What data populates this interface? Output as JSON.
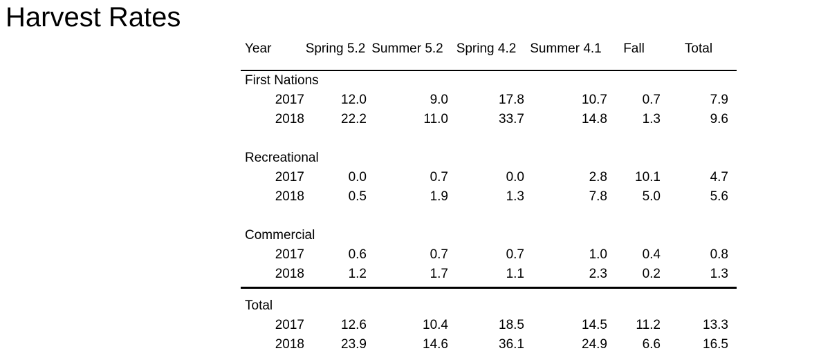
{
  "page": {
    "title": "Harvest Rates",
    "background_color": "#ffffff",
    "text_color": "#000000"
  },
  "chart_data": {
    "type": "table",
    "title": "Harvest Rates",
    "columns": [
      "Year",
      "Spring 5.2",
      "Summer 5.2",
      "Spring 4.2",
      "Summer 4.1",
      "Fall",
      "Total"
    ],
    "layout_hints": {
      "header_rule": "thin",
      "rule_before_total_section": "thick",
      "value_alignment": "right",
      "section_label_alignment": "left"
    },
    "sections": [
      {
        "label": "First Nations",
        "rows": [
          {
            "year": "2017",
            "values": [
              "12.0",
              "9.0",
              "17.8",
              "10.7",
              "0.7",
              "7.9"
            ]
          },
          {
            "year": "2018",
            "values": [
              "22.2",
              "11.0",
              "33.7",
              "14.8",
              "1.3",
              "9.6"
            ]
          }
        ]
      },
      {
        "label": "Recreational",
        "rows": [
          {
            "year": "2017",
            "values": [
              "0.0",
              "0.7",
              "0.0",
              "2.8",
              "10.1",
              "4.7"
            ]
          },
          {
            "year": "2018",
            "values": [
              "0.5",
              "1.9",
              "1.3",
              "7.8",
              "5.0",
              "5.6"
            ]
          }
        ]
      },
      {
        "label": "Commercial",
        "rows": [
          {
            "year": "2017",
            "values": [
              "0.6",
              "0.7",
              "0.7",
              "1.0",
              "0.4",
              "0.8"
            ]
          },
          {
            "year": "2018",
            "values": [
              "1.2",
              "1.7",
              "1.1",
              "2.3",
              "0.2",
              "1.3"
            ]
          }
        ]
      },
      {
        "label": "Total",
        "rule_before": true,
        "rows": [
          {
            "year": "2017",
            "values": [
              "12.6",
              "10.4",
              "18.5",
              "14.5",
              "11.2",
              "13.3"
            ]
          },
          {
            "year": "2018",
            "values": [
              "23.9",
              "14.6",
              "36.1",
              "24.9",
              "6.6",
              "16.5"
            ]
          }
        ]
      }
    ]
  }
}
